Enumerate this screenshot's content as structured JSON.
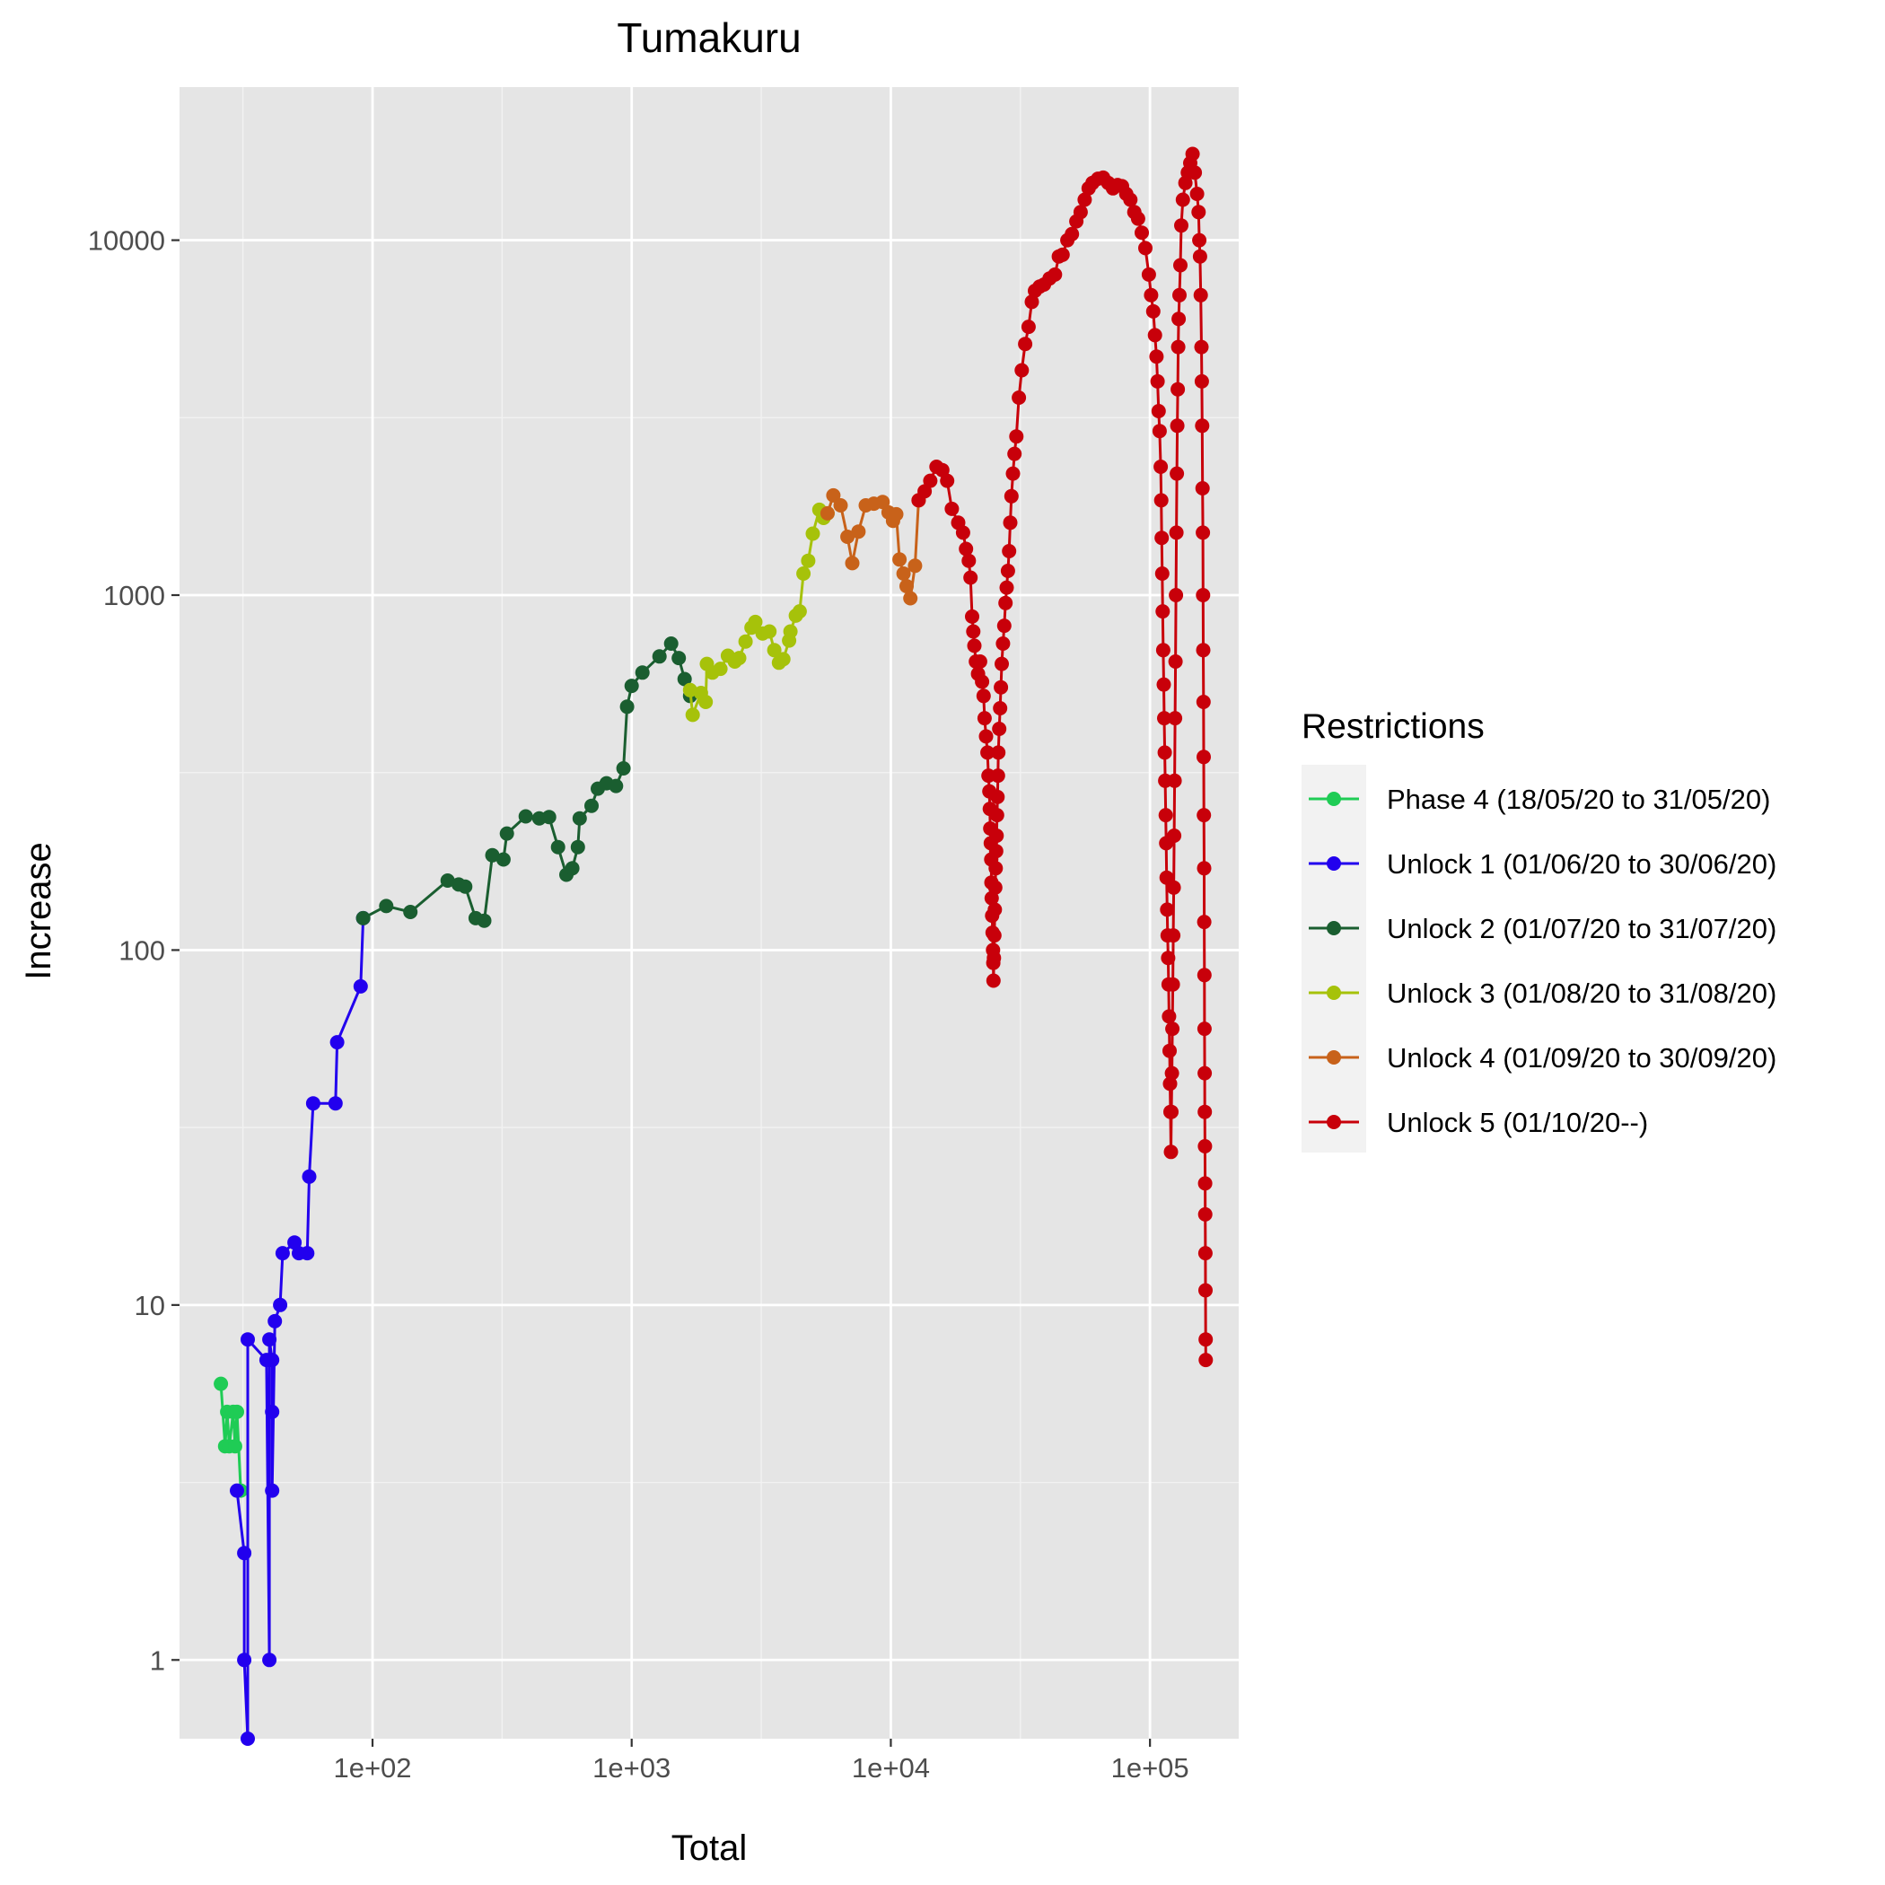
{
  "chart_data": {
    "type": "line",
    "title": "Tumakuru",
    "xlabel": "Total",
    "ylabel": "Increase",
    "x_scale": "log10",
    "y_scale": "log10",
    "xlim": [
      18,
      220000
    ],
    "ylim": [
      0.6,
      27000
    ],
    "x_ticks": [
      {
        "value": 100,
        "label": "1e+02"
      },
      {
        "value": 1000,
        "label": "1e+03"
      },
      {
        "value": 10000,
        "label": "1e+04"
      },
      {
        "value": 100000,
        "label": "1e+05"
      }
    ],
    "y_ticks": [
      {
        "value": 1,
        "label": "1"
      },
      {
        "value": 10,
        "label": "10"
      },
      {
        "value": 100,
        "label": "100"
      },
      {
        "value": 1000,
        "label": "1000"
      },
      {
        "value": 10000,
        "label": "10000"
      }
    ],
    "grid": true,
    "legend": {
      "title": "Restrictions",
      "position": "right"
    },
    "series": [
      {
        "name": "Phase 4 (18/05/20 to 31/05/20)",
        "color": "#1fcc55",
        "points": [
          [
            26,
            6
          ],
          [
            27,
            4
          ],
          [
            27.5,
            5
          ],
          [
            28,
            4
          ],
          [
            29,
            5
          ],
          [
            29.5,
            4
          ],
          [
            30,
            5
          ],
          [
            31,
            3
          ]
        ]
      },
      {
        "name": "Unlock 1 (01/06/20 to 30/06/20)",
        "color": "#2200ee",
        "points": [
          [
            30,
            3
          ],
          [
            32,
            2
          ],
          [
            32,
            1
          ],
          [
            33,
            0.6
          ],
          [
            33,
            8
          ],
          [
            39,
            7
          ],
          [
            40,
            1
          ],
          [
            40,
            8
          ],
          [
            41,
            7
          ],
          [
            41,
            5
          ],
          [
            41,
            3
          ],
          [
            42,
            9
          ],
          [
            44,
            10
          ],
          [
            45,
            14
          ],
          [
            50,
            15
          ],
          [
            52,
            14
          ],
          [
            56,
            14
          ],
          [
            57,
            23
          ],
          [
            59,
            37
          ],
          [
            72,
            37
          ],
          [
            73,
            55
          ],
          [
            90,
            79
          ],
          [
            92,
            123
          ]
        ]
      },
      {
        "name": "Unlock 2 (01/07/20 to 31/07/20)",
        "color": "#1a5e30",
        "points": [
          [
            92,
            123
          ],
          [
            113,
            133
          ],
          [
            140,
            128
          ],
          [
            195,
            157
          ],
          [
            215,
            153
          ],
          [
            228,
            151
          ],
          [
            250,
            123
          ],
          [
            270,
            121
          ],
          [
            290,
            185
          ],
          [
            320,
            180
          ],
          [
            330,
            213
          ],
          [
            390,
            238
          ],
          [
            440,
            235
          ],
          [
            480,
            237
          ],
          [
            520,
            195
          ],
          [
            560,
            163
          ],
          [
            590,
            170
          ],
          [
            620,
            195
          ],
          [
            630,
            235
          ],
          [
            700,
            255
          ],
          [
            740,
            285
          ],
          [
            800,
            295
          ],
          [
            870,
            290
          ],
          [
            930,
            325
          ],
          [
            960,
            485
          ],
          [
            1000,
            555
          ],
          [
            1100,
            605
          ],
          [
            1280,
            672
          ],
          [
            1420,
            730
          ],
          [
            1520,
            665
          ],
          [
            1600,
            580
          ],
          [
            1680,
            520
          ]
        ]
      },
      {
        "name": "Unlock 3 (01/08/20 to 31/08/20)",
        "color": "#a6c20a",
        "points": [
          [
            1680,
            540
          ],
          [
            1720,
            460
          ],
          [
            1850,
            530
          ],
          [
            1930,
            500
          ],
          [
            1950,
            640
          ],
          [
            2050,
            605
          ],
          [
            2200,
            620
          ],
          [
            2350,
            675
          ],
          [
            2500,
            650
          ],
          [
            2600,
            665
          ],
          [
            2750,
            740
          ],
          [
            2900,
            810
          ],
          [
            3000,
            840
          ],
          [
            3200,
            780
          ],
          [
            3400,
            790
          ],
          [
            3550,
            700
          ],
          [
            3700,
            645
          ],
          [
            3850,
            660
          ],
          [
            4050,
            745
          ],
          [
            4100,
            790
          ],
          [
            4300,
            875
          ],
          [
            4450,
            900
          ],
          [
            4600,
            1150
          ],
          [
            4800,
            1250
          ],
          [
            5000,
            1490
          ],
          [
            5300,
            1740
          ],
          [
            5500,
            1650
          ],
          [
            5700,
            1700
          ]
        ]
      },
      {
        "name": "Unlock 4 (01/09/20 to 30/09/20)",
        "color": "#c8621a",
        "points": [
          [
            5700,
            1700
          ],
          [
            6000,
            1910
          ],
          [
            6400,
            1790
          ],
          [
            6800,
            1460
          ],
          [
            7100,
            1230
          ],
          [
            7500,
            1510
          ],
          [
            8000,
            1790
          ],
          [
            8600,
            1810
          ],
          [
            9300,
            1830
          ],
          [
            9800,
            1710
          ],
          [
            10200,
            1620
          ],
          [
            10500,
            1690
          ],
          [
            10800,
            1260
          ],
          [
            11200,
            1150
          ],
          [
            11500,
            1060
          ],
          [
            11900,
            980
          ],
          [
            12400,
            1210
          ],
          [
            12800,
            1850
          ]
        ]
      },
      {
        "name": "Unlock 5 (01/10/20--)",
        "color": "#c8000a",
        "points": [
          [
            12800,
            1850
          ],
          [
            13500,
            1960
          ],
          [
            14200,
            2100
          ],
          [
            15000,
            2300
          ],
          [
            15800,
            2250
          ],
          [
            16500,
            2100
          ],
          [
            17200,
            1750
          ],
          [
            18200,
            1600
          ],
          [
            19000,
            1500
          ],
          [
            19500,
            1350
          ],
          [
            20000,
            1250
          ],
          [
            20300,
            1120
          ],
          [
            20600,
            870
          ],
          [
            20800,
            790
          ],
          [
            21000,
            720
          ],
          [
            21300,
            650
          ],
          [
            21700,
            600
          ],
          [
            22100,
            650
          ],
          [
            22500,
            570
          ],
          [
            22800,
            520
          ],
          [
            23000,
            450
          ],
          [
            23300,
            400
          ],
          [
            23600,
            360
          ],
          [
            23800,
            310
          ],
          [
            24000,
            280
          ],
          [
            24100,
            250
          ],
          [
            24200,
            220
          ],
          [
            24300,
            200
          ],
          [
            24400,
            180
          ],
          [
            24450,
            155
          ],
          [
            24500,
            140
          ],
          [
            24600,
            125
          ],
          [
            24700,
            112
          ],
          [
            24800,
            100
          ],
          [
            24850,
            92
          ],
          [
            24900,
            82
          ],
          [
            25000,
            95
          ],
          [
            25100,
            110
          ],
          [
            25200,
            130
          ],
          [
            25300,
            150
          ],
          [
            25400,
            170
          ],
          [
            25500,
            190
          ],
          [
            25600,
            210
          ],
          [
            25700,
            240
          ],
          [
            25800,
            270
          ],
          [
            25900,
            310
          ],
          [
            26000,
            360
          ],
          [
            26200,
            420
          ],
          [
            26400,
            480
          ],
          [
            26600,
            550
          ],
          [
            26800,
            640
          ],
          [
            27100,
            730
          ],
          [
            27400,
            820
          ],
          [
            27700,
            950
          ],
          [
            28000,
            1050
          ],
          [
            28300,
            1170
          ],
          [
            28600,
            1330
          ],
          [
            28900,
            1600
          ],
          [
            29200,
            1900
          ],
          [
            29600,
            2200
          ],
          [
            30000,
            2500
          ],
          [
            30500,
            2800
          ],
          [
            31200,
            3600
          ],
          [
            32000,
            4300
          ],
          [
            33000,
            5100
          ],
          [
            34000,
            5700
          ],
          [
            35000,
            6700
          ],
          [
            36000,
            7200
          ],
          [
            37500,
            7400
          ],
          [
            39000,
            7500
          ],
          [
            41000,
            7800
          ],
          [
            43000,
            8000
          ],
          [
            44500,
            9000
          ],
          [
            46000,
            9100
          ],
          [
            48000,
            10000
          ],
          [
            50000,
            10400
          ],
          [
            52000,
            11300
          ],
          [
            54000,
            12000
          ],
          [
            56000,
            13000
          ],
          [
            58000,
            14000
          ],
          [
            60000,
            14500
          ],
          [
            63000,
            14900
          ],
          [
            66000,
            15000
          ],
          [
            69000,
            14500
          ],
          [
            72000,
            14000
          ],
          [
            75000,
            14300
          ],
          [
            78000,
            14200
          ],
          [
            81000,
            13500
          ],
          [
            84000,
            13000
          ],
          [
            87000,
            12000
          ],
          [
            90000,
            11500
          ],
          [
            93000,
            10500
          ],
          [
            96000,
            9500
          ],
          [
            99000,
            8000
          ],
          [
            101000,
            7000
          ],
          [
            103000,
            6300
          ],
          [
            104500,
            5400
          ],
          [
            106000,
            4700
          ],
          [
            107000,
            4000
          ],
          [
            108000,
            3300
          ],
          [
            109000,
            2900
          ],
          [
            110000,
            2300
          ],
          [
            110500,
            1850
          ],
          [
            111000,
            1450
          ],
          [
            111500,
            1150
          ],
          [
            112000,
            900
          ],
          [
            112500,
            700
          ],
          [
            113000,
            560
          ],
          [
            113500,
            450
          ],
          [
            114000,
            360
          ],
          [
            114500,
            300
          ],
          [
            115000,
            240
          ],
          [
            115500,
            200
          ],
          [
            116000,
            160
          ],
          [
            116500,
            130
          ],
          [
            117000,
            110
          ],
          [
            117500,
            95
          ],
          [
            118000,
            80
          ],
          [
            118500,
            65
          ],
          [
            119000,
            52
          ],
          [
            119500,
            42
          ],
          [
            120000,
            35
          ],
          [
            120500,
            27
          ],
          [
            121000,
            35
          ],
          [
            121500,
            45
          ],
          [
            122000,
            60
          ],
          [
            122500,
            80
          ],
          [
            123000,
            110
          ],
          [
            123500,
            150
          ],
          [
            124000,
            210
          ],
          [
            124500,
            300
          ],
          [
            125000,
            450
          ],
          [
            125500,
            650
          ],
          [
            126000,
            1000
          ],
          [
            126500,
            1500
          ],
          [
            127000,
            2200
          ],
          [
            127500,
            3000
          ],
          [
            128000,
            3800
          ],
          [
            128500,
            5000
          ],
          [
            129000,
            6000
          ],
          [
            130000,
            7000
          ],
          [
            131000,
            8500
          ],
          [
            132000,
            11000
          ],
          [
            134000,
            13000
          ],
          [
            137000,
            14500
          ],
          [
            140000,
            15500
          ],
          [
            143000,
            16500
          ],
          [
            146000,
            17500
          ],
          [
            149000,
            15500
          ],
          [
            152000,
            13500
          ],
          [
            154000,
            12000
          ],
          [
            155000,
            10000
          ],
          [
            156000,
            9000
          ],
          [
            157000,
            7000
          ],
          [
            158000,
            5000
          ],
          [
            158500,
            4000
          ],
          [
            159000,
            3000
          ],
          [
            159500,
            2000
          ],
          [
            160000,
            1500
          ],
          [
            160300,
            1000
          ],
          [
            160600,
            700
          ],
          [
            160900,
            500
          ],
          [
            161200,
            350
          ],
          [
            161500,
            240
          ],
          [
            161800,
            170
          ],
          [
            162000,
            120
          ],
          [
            162200,
            85
          ],
          [
            162400,
            60
          ],
          [
            162600,
            45
          ],
          [
            162800,
            35
          ],
          [
            163000,
            28
          ],
          [
            163200,
            22
          ],
          [
            163400,
            18
          ],
          [
            163600,
            14
          ],
          [
            163800,
            11
          ],
          [
            164000,
            8
          ],
          [
            164200,
            7
          ]
        ]
      }
    ]
  }
}
